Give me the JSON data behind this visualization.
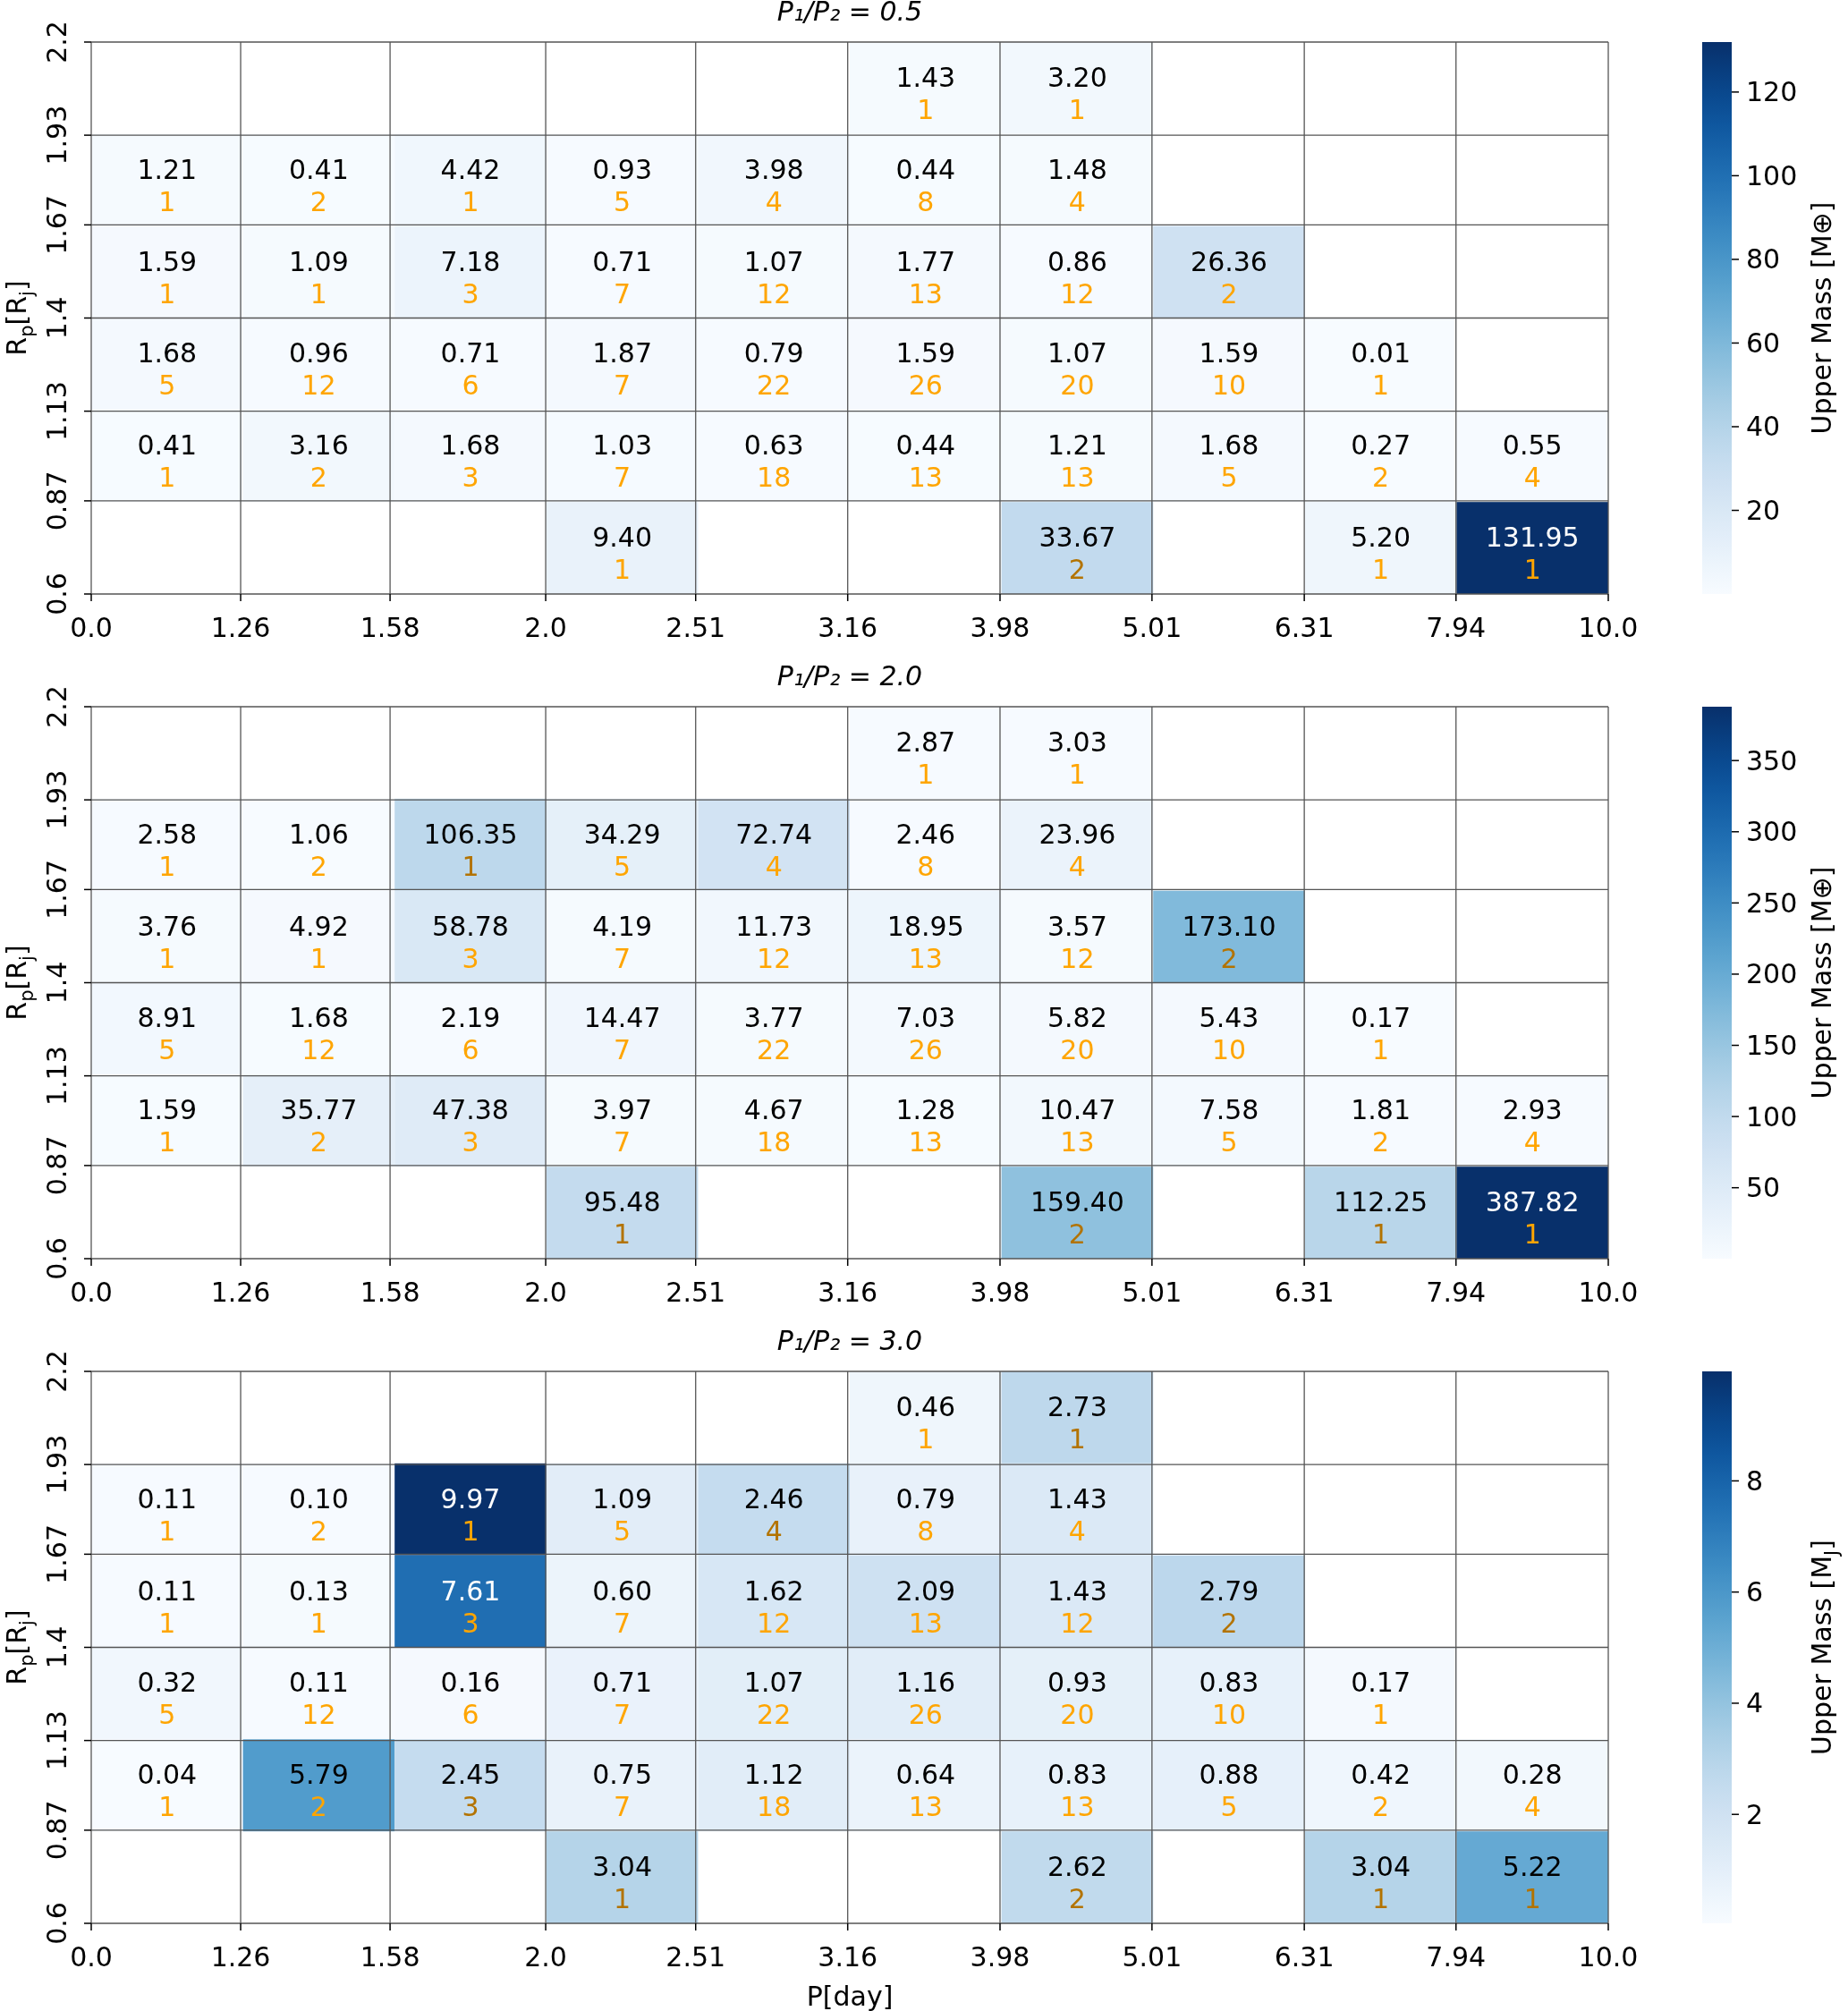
{
  "chart_data": [
    {
      "type": "heatmap",
      "title": "P₁/P₂ = 0.5",
      "ylabel": "R$_{p}$[R$_{j}$]",
      "clabel": "Upper Mass [M⊕]",
      "log": "x",
      "xlim": [
        0,
        10
      ],
      "xticks": [
        {
          "value": 0,
          "label": "0.0"
        },
        1.26,
        1.58,
        {
          "value": 2,
          "label": "2.0"
        },
        2.51,
        3.16,
        3.98,
        5.01,
        6.31,
        7.94,
        {
          "value": 10,
          "label": "10.0"
        }
      ],
      "ylim": [
        0.6,
        2.2
      ],
      "yticks": [
        0.6,
        0.87,
        1.13,
        1.4,
        1.67,
        1.93,
        2.2
      ],
      "grid": true,
      "clim": [
        0.01,
        131.95
      ],
      "cticks": [
        20,
        40,
        60,
        80,
        100,
        120
      ],
      "cells": [
        [
          null,
          null,
          null,
          null,
          null,
          1.43,
          3.2,
          null,
          null,
          null
        ],
        [
          1.21,
          0.41,
          4.42,
          0.93,
          3.98,
          0.44,
          1.48,
          null,
          null,
          null
        ],
        [
          1.59,
          1.09,
          7.18,
          0.71,
          1.07,
          1.77,
          0.86,
          26.36,
          null,
          null
        ],
        [
          1.68,
          0.96,
          0.71,
          1.87,
          0.79,
          1.59,
          1.07,
          1.59,
          0.01,
          null
        ],
        [
          0.41,
          3.16,
          1.68,
          1.03,
          0.63,
          0.44,
          1.21,
          1.68,
          0.27,
          0.55
        ],
        [
          null,
          null,
          null,
          9.4,
          null,
          null,
          33.67,
          null,
          5.2,
          131.95
        ]
      ],
      "cell_labels": [
        [
          null,
          null,
          null,
          null,
          null,
          "1.43\n1",
          "3.20\n1",
          null,
          null,
          null
        ],
        [
          "1.21\n1",
          "0.41\n2",
          "4.42\n1",
          "0.93\n5",
          "3.98\n4",
          "0.44\n8",
          "1.48\n4",
          null,
          null,
          null
        ],
        [
          "1.59\n1",
          "1.09\n1",
          "7.18\n3",
          "0.71\n7",
          "1.07\n12",
          "1.77\n13",
          "0.86\n12",
          "26.36\n2",
          null,
          null
        ],
        [
          "1.68\n5",
          "0.96\n12",
          "0.71\n6",
          "1.87\n7",
          "0.79\n22",
          "1.59\n26",
          "1.07\n20",
          "1.59\n10",
          "0.01\n1",
          null
        ],
        [
          "0.41\n1",
          "3.16\n2",
          "1.68\n3",
          "1.03\n7",
          "0.63\n18",
          "0.44\n13",
          "1.21\n13",
          "1.68\n5",
          "0.27\n2",
          "0.55\n4"
        ],
        [
          null,
          null,
          null,
          "9.40\n1",
          null,
          null,
          "33.67\n2",
          null,
          "5.20\n1",
          "131.95\n1"
        ]
      ]
    },
    {
      "type": "heatmap",
      "title": "P₁/P₂ = 2.0",
      "ylabel": "R$_{p}$[R$_{j}$]",
      "clabel": "Upper Mass [M⊕]",
      "log": "x",
      "xlim": [
        0,
        10
      ],
      "xticks": [
        {
          "value": 0,
          "label": "0.0"
        },
        1.26,
        1.58,
        {
          "value": 2,
          "label": "2.0"
        },
        2.51,
        3.16,
        3.98,
        5.01,
        6.31,
        7.94,
        {
          "value": 10,
          "label": "10.0"
        }
      ],
      "ylim": [
        0.6,
        2.2
      ],
      "yticks": [
        0.6,
        0.87,
        1.13,
        1.4,
        1.67,
        1.93,
        2.2
      ],
      "grid": true,
      "clim": [
        0.17,
        387.82
      ],
      "cticks": [
        50,
        100,
        150,
        200,
        250,
        300,
        350
      ],
      "cells": [
        [
          null,
          null,
          null,
          null,
          null,
          2.87,
          3.03,
          null,
          null,
          null
        ],
        [
          2.58,
          1.06,
          106.35,
          34.29,
          72.74,
          2.46,
          23.96,
          null,
          null,
          null
        ],
        [
          3.76,
          4.92,
          58.78,
          4.19,
          11.73,
          18.95,
          3.57,
          173.1,
          null,
          null
        ],
        [
          8.91,
          1.68,
          2.19,
          14.47,
          3.77,
          7.03,
          5.82,
          5.43,
          0.17,
          null
        ],
        [
          1.59,
          35.77,
          47.38,
          3.97,
          4.67,
          1.28,
          10.47,
          7.58,
          1.81,
          2.93
        ],
        [
          null,
          null,
          null,
          95.48,
          null,
          null,
          159.4,
          null,
          112.25,
          387.82
        ]
      ],
      "cell_labels": [
        [
          null,
          null,
          null,
          null,
          null,
          "2.87\n1",
          "3.03\n1",
          null,
          null,
          null
        ],
        [
          "2.58\n1",
          "1.06\n2",
          "106.35\n1",
          "34.29\n5",
          "72.74\n4",
          "2.46\n8",
          "23.96\n4",
          null,
          null,
          null
        ],
        [
          "3.76\n1",
          "4.92\n1",
          "58.78\n3",
          "4.19\n7",
          "11.73\n12",
          "18.95\n13",
          "3.57\n12",
          "173.10\n2",
          null,
          null
        ],
        [
          "8.91\n5",
          "1.68\n12",
          "2.19\n6",
          "14.47\n7",
          "3.77\n22",
          "7.03\n26",
          "5.82\n20",
          "5.43\n10",
          "0.17\n1",
          null
        ],
        [
          "1.59\n1",
          "35.77\n2",
          "47.38\n3",
          "3.97\n7",
          "4.67\n18",
          "1.28\n13",
          "10.47\n13",
          "7.58\n5",
          "1.81\n2",
          "2.93\n4"
        ],
        [
          null,
          null,
          null,
          "95.48\n1",
          null,
          null,
          "159.40\n2",
          null,
          "112.25\n1",
          "387.82\n1"
        ]
      ]
    },
    {
      "type": "heatmap",
      "title": "P₁/P₂ = 3.0",
      "xlabel": "P[day]",
      "ylabel": "R$_{p}$[R$_{j}$]",
      "clabel": "Upper Mass [M$_{J}$]",
      "log": "x",
      "xlim": [
        0,
        10
      ],
      "xticks": [
        {
          "value": 0,
          "label": "0.0"
        },
        1.26,
        1.58,
        {
          "value": 2,
          "label": "2.0"
        },
        2.51,
        3.16,
        3.98,
        5.01,
        6.31,
        7.94,
        {
          "value": 10,
          "label": "10.0"
        }
      ],
      "ylim": [
        0.6,
        2.2
      ],
      "yticks": [
        0.6,
        0.87,
        1.13,
        1.4,
        1.67,
        1.93,
        2.2
      ],
      "grid": true,
      "clim": [
        0.04,
        9.97
      ],
      "cticks": [
        2,
        4,
        6,
        8
      ],
      "cells": [
        [
          null,
          null,
          null,
          null,
          null,
          0.46,
          2.73,
          null,
          null,
          null
        ],
        [
          0.11,
          0.1,
          9.97,
          1.09,
          2.46,
          0.79,
          1.43,
          null,
          null,
          null
        ],
        [
          0.11,
          0.13,
          7.61,
          0.6,
          1.62,
          2.09,
          1.43,
          2.79,
          null,
          null
        ],
        [
          0.32,
          0.11,
          0.16,
          0.71,
          1.07,
          1.16,
          0.93,
          0.83,
          0.17,
          null
        ],
        [
          0.04,
          5.79,
          2.45,
          0.75,
          1.12,
          0.64,
          0.83,
          0.88,
          0.42,
          0.28
        ],
        [
          null,
          null,
          null,
          3.04,
          null,
          null,
          2.62,
          null,
          3.04,
          5.22
        ]
      ],
      "cell_labels": [
        [
          null,
          null,
          null,
          null,
          null,
          "0.46\n1",
          "2.73\n1",
          null,
          null,
          null
        ],
        [
          "0.11\n1",
          "0.10\n2",
          "9.97\n1",
          "1.09\n5",
          "2.46\n4",
          "0.79\n8",
          "1.43\n4",
          null,
          null,
          null
        ],
        [
          "0.11\n1",
          "0.13\n1",
          "7.61\n3",
          "0.60\n7",
          "1.62\n12",
          "2.09\n13",
          "1.43\n12",
          "2.79\n2",
          null,
          null
        ],
        [
          "0.32\n5",
          "0.11\n12",
          "0.16\n6",
          "0.71\n7",
          "1.07\n22",
          "1.16\n26",
          "0.93\n20",
          "0.83\n10",
          "0.17\n1",
          null
        ],
        [
          "0.04\n1",
          "5.79\n2",
          "2.45\n3",
          "0.75\n7",
          "1.12\n18",
          "0.64\n13",
          "0.83\n13",
          "0.88\n5",
          "0.42\n2",
          "0.28\n4"
        ],
        [
          null,
          null,
          null,
          "3.04\n1",
          null,
          null,
          "2.62\n2",
          null,
          "3.04\n1",
          "5.22\n1"
        ]
      ]
    }
  ]
}
